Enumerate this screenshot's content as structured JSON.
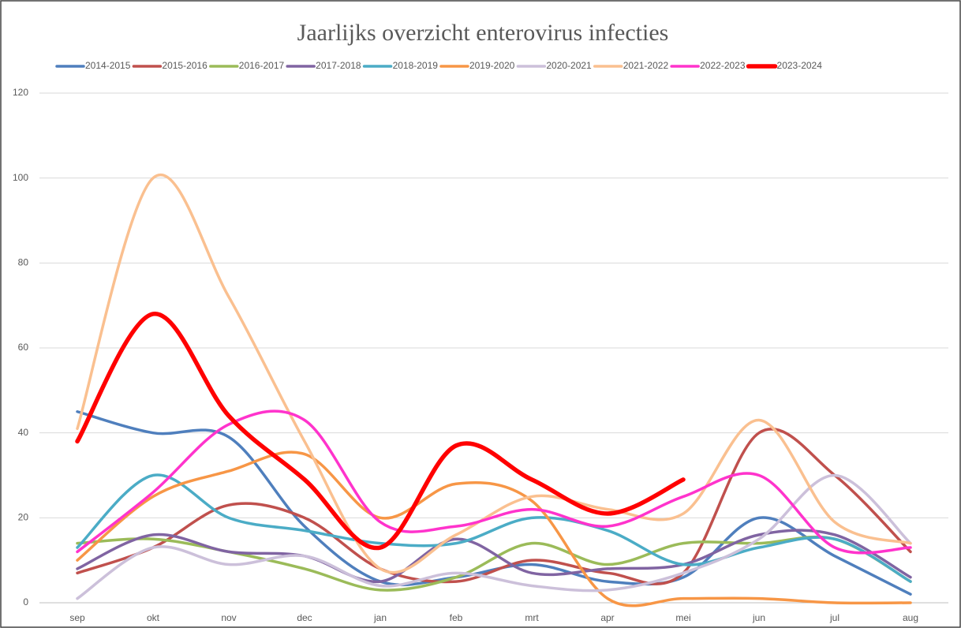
{
  "chart_data": {
    "type": "line",
    "title": "Jaarlijks overzicht enterovirus infecties",
    "categories": [
      "sep",
      "okt",
      "nov",
      "dec",
      "jan",
      "feb",
      "mrt",
      "apr",
      "mei",
      "jun",
      "jul",
      "aug"
    ],
    "ylim": [
      0,
      120
    ],
    "yticks": [
      0,
      20,
      40,
      60,
      80,
      100,
      120
    ],
    "grid": true,
    "smooth": true,
    "legend": "top",
    "series": [
      {
        "name": "2014-2015",
        "color": "#4f7fbd",
        "width": 3.5,
        "values": [
          45,
          40,
          39,
          18,
          5,
          6,
          9,
          5,
          6,
          20,
          11,
          2
        ]
      },
      {
        "name": "2015-2016",
        "color": "#c0504d",
        "width": 3.5,
        "values": [
          7,
          13,
          23,
          20,
          8,
          5,
          10,
          7,
          7,
          40,
          30,
          12
        ]
      },
      {
        "name": "2016-2017",
        "color": "#9bbb59",
        "width": 3.5,
        "values": [
          14,
          15,
          12,
          8,
          3,
          6,
          14,
          9,
          14,
          14,
          15,
          5
        ]
      },
      {
        "name": "2017-2018",
        "color": "#8064a2",
        "width": 3.5,
        "values": [
          8,
          16,
          12,
          11,
          5,
          15,
          7,
          8,
          9,
          16,
          16,
          6
        ]
      },
      {
        "name": "2018-2019",
        "color": "#4bacc6",
        "width": 3.5,
        "values": [
          13,
          30,
          20,
          17,
          14,
          14,
          20,
          17,
          9,
          13,
          15,
          5
        ]
      },
      {
        "name": "2019-2020",
        "color": "#f79646",
        "width": 3.5,
        "values": [
          10,
          25,
          31,
          35,
          20,
          28,
          24,
          1,
          1,
          1,
          0,
          0
        ]
      },
      {
        "name": "2020-2021",
        "color": "#ccc0da",
        "width": 3.5,
        "values": [
          1,
          13,
          9,
          11,
          4,
          7,
          4,
          3,
          7,
          15,
          30,
          14
        ]
      },
      {
        "name": "2021-2022",
        "color": "#fac090",
        "width": 3.5,
        "values": [
          41,
          100,
          72,
          38,
          8,
          16,
          25,
          22,
          21,
          43,
          19,
          14
        ]
      },
      {
        "name": "2022-2023",
        "color": "#ff33cc",
        "width": 3.5,
        "values": [
          12,
          26,
          42,
          43,
          19,
          18,
          22,
          18,
          25,
          30,
          13,
          13
        ]
      },
      {
        "name": "2023-2024",
        "color": "#ff0000",
        "width": 5.5,
        "values": [
          38,
          68,
          44,
          29,
          13,
          37,
          29,
          21,
          29,
          null,
          null,
          null
        ]
      }
    ]
  }
}
